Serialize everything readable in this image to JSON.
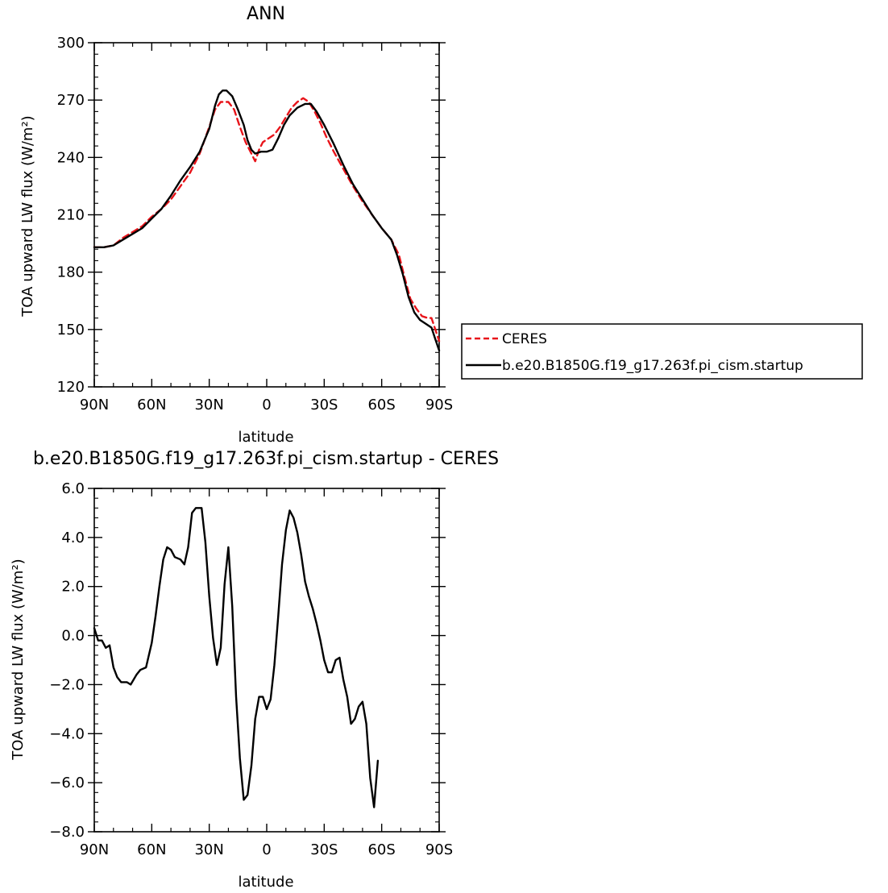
{
  "chart_data": [
    {
      "type": "line",
      "title": "ANN",
      "xlabel": "latitude",
      "ylabel": "TOA upward LW flux (W/m²)",
      "xlim": [
        90,
        -90
      ],
      "ylim": [
        120,
        300
      ],
      "x_ticks": [
        {
          "value": 90,
          "label": "90N"
        },
        {
          "value": 60,
          "label": "60N"
        },
        {
          "value": 30,
          "label": "30N"
        },
        {
          "value": 0,
          "label": "0"
        },
        {
          "value": -30,
          "label": "30S"
        },
        {
          "value": -60,
          "label": "60S"
        },
        {
          "value": -90,
          "label": "90S"
        }
      ],
      "y_ticks": [
        120,
        150,
        180,
        210,
        240,
        270,
        300
      ],
      "legend_position": "right",
      "series": [
        {
          "name": "CERES",
          "color": "#e8141a",
          "dash": true,
          "points": [
            [
              90,
              193
            ],
            [
              85,
              193
            ],
            [
              80,
              194
            ],
            [
              75,
              198
            ],
            [
              70,
              201
            ],
            [
              65,
              204
            ],
            [
              60,
              209
            ],
            [
              55,
              213
            ],
            [
              50,
              218
            ],
            [
              45,
              225
            ],
            [
              40,
              232
            ],
            [
              35,
              242
            ],
            [
              30,
              256
            ],
            [
              27,
              265
            ],
            [
              24,
              269
            ],
            [
              20,
              269
            ],
            [
              17,
              265
            ],
            [
              14,
              256
            ],
            [
              11,
              248
            ],
            [
              8,
              242
            ],
            [
              6,
              238
            ],
            [
              4,
              244
            ],
            [
              2,
              248
            ],
            [
              -1,
              250
            ],
            [
              -4,
              252
            ],
            [
              -7,
              256
            ],
            [
              -10,
              261
            ],
            [
              -13,
              266
            ],
            [
              -16,
              269
            ],
            [
              -19,
              271
            ],
            [
              -22,
              269
            ],
            [
              -25,
              264
            ],
            [
              -28,
              258
            ],
            [
              -31,
              251
            ],
            [
              -35,
              243
            ],
            [
              -40,
              234
            ],
            [
              -45,
              225
            ],
            [
              -50,
              217
            ],
            [
              -55,
              210
            ],
            [
              -60,
              203
            ],
            [
              -65,
              197
            ],
            [
              -69,
              189
            ],
            [
              -72,
              177
            ],
            [
              -75,
              166
            ],
            [
              -78,
              161
            ],
            [
              -81,
              157
            ],
            [
              -84,
              156
            ],
            [
              -86,
              156
            ],
            [
              -88,
              150
            ],
            [
              -90,
              144
            ]
          ]
        },
        {
          "name": "b.e20.B1850G.f19_g17.263f.pi_cism.startup",
          "color": "#000000",
          "dash": false,
          "points": [
            [
              90,
              193
            ],
            [
              85,
              193
            ],
            [
              80,
              194
            ],
            [
              75,
              197
            ],
            [
              70,
              200
            ],
            [
              65,
              203
            ],
            [
              60,
              208
            ],
            [
              55,
              213
            ],
            [
              50,
              220
            ],
            [
              45,
              228
            ],
            [
              40,
              235
            ],
            [
              35,
              243
            ],
            [
              30,
              255
            ],
            [
              27,
              267
            ],
            [
              25,
              273
            ],
            [
              23,
              275
            ],
            [
              21,
              275
            ],
            [
              18,
              272
            ],
            [
              15,
              265
            ],
            [
              12,
              257
            ],
            [
              10,
              249
            ],
            [
              8,
              244
            ],
            [
              6,
              242
            ],
            [
              3,
              243
            ],
            [
              0,
              243
            ],
            [
              -3,
              244
            ],
            [
              -6,
              250
            ],
            [
              -9,
              257
            ],
            [
              -12,
              262
            ],
            [
              -16,
              266
            ],
            [
              -20,
              268
            ],
            [
              -23,
              268
            ],
            [
              -26,
              264
            ],
            [
              -30,
              257
            ],
            [
              -35,
              247
            ],
            [
              -40,
              236
            ],
            [
              -45,
              226
            ],
            [
              -50,
              218
            ],
            [
              -55,
              210
            ],
            [
              -60,
              203
            ],
            [
              -65,
              197
            ],
            [
              -68,
              189
            ],
            [
              -71,
              179
            ],
            [
              -74,
              167
            ],
            [
              -77,
              159
            ],
            [
              -80,
              155
            ],
            [
              -83,
              153
            ],
            [
              -86,
              151
            ],
            [
              -88,
              145
            ],
            [
              -90,
              139
            ]
          ]
        }
      ]
    },
    {
      "type": "line",
      "title": "b.e20.B1850G.f19_g17.263f.pi_cism.startup - CERES",
      "xlabel": "latitude",
      "ylabel": "TOA upward LW flux (W/m²)",
      "xlim": [
        90,
        -90
      ],
      "ylim": [
        -8,
        6
      ],
      "x_ticks": [
        {
          "value": 90,
          "label": "90N"
        },
        {
          "value": 60,
          "label": "60N"
        },
        {
          "value": 30,
          "label": "30N"
        },
        {
          "value": 0,
          "label": "0"
        },
        {
          "value": -30,
          "label": "30S"
        },
        {
          "value": -60,
          "label": "60S"
        },
        {
          "value": -90,
          "label": "90S"
        }
      ],
      "y_ticks": [
        "-8.0",
        "-6.0",
        "-4.0",
        "-2.0",
        "0.0",
        "2.0",
        "4.0",
        "6.0"
      ],
      "series": [
        {
          "color": "#000000",
          "dash": false,
          "points": [
            [
              90,
              0.3
            ],
            [
              88,
              -0.2
            ],
            [
              86,
              -0.2
            ],
            [
              84,
              -0.5
            ],
            [
              82,
              -0.4
            ],
            [
              80,
              -1.3
            ],
            [
              78,
              -1.7
            ],
            [
              76,
              -1.9
            ],
            [
              73,
              -1.9
            ],
            [
              71,
              -2.0
            ],
            [
              68,
              -1.6
            ],
            [
              66,
              -1.4
            ],
            [
              63,
              -1.3
            ],
            [
              60,
              -0.3
            ],
            [
              58,
              0.8
            ],
            [
              56,
              2.0
            ],
            [
              54,
              3.1
            ],
            [
              52,
              3.6
            ],
            [
              50,
              3.5
            ],
            [
              48,
              3.2
            ],
            [
              45,
              3.1
            ],
            [
              43,
              2.9
            ],
            [
              41,
              3.6
            ],
            [
              39,
              5.0
            ],
            [
              37,
              5.2
            ],
            [
              34,
              5.2
            ],
            [
              32,
              3.8
            ],
            [
              30,
              1.6
            ],
            [
              28,
              -0.1
            ],
            [
              26,
              -1.2
            ],
            [
              24,
              -0.5
            ],
            [
              22,
              2.1
            ],
            [
              20,
              3.6
            ],
            [
              18,
              1.2
            ],
            [
              16,
              -2.5
            ],
            [
              14,
              -5.0
            ],
            [
              12,
              -6.7
            ],
            [
              10,
              -6.5
            ],
            [
              8,
              -5.3
            ],
            [
              6,
              -3.4
            ],
            [
              4,
              -2.5
            ],
            [
              2,
              -2.5
            ],
            [
              0,
              -3.0
            ],
            [
              -2,
              -2.6
            ],
            [
              -4,
              -1.2
            ],
            [
              -6,
              0.8
            ],
            [
              -8,
              2.9
            ],
            [
              -10,
              4.3
            ],
            [
              -12,
              5.1
            ],
            [
              -14,
              4.8
            ],
            [
              -16,
              4.2
            ],
            [
              -18,
              3.3
            ],
            [
              -20,
              2.2
            ],
            [
              -22,
              1.6
            ],
            [
              -24,
              1.1
            ],
            [
              -26,
              0.5
            ],
            [
              -28,
              -0.2
            ],
            [
              -30,
              -1.0
            ],
            [
              -32,
              -1.5
            ],
            [
              -34,
              -1.5
            ],
            [
              -36,
              -1.0
            ],
            [
              -38,
              -0.9
            ],
            [
              -40,
              -1.8
            ],
            [
              -42,
              -2.5
            ],
            [
              -44,
              -3.6
            ],
            [
              -46,
              -3.4
            ],
            [
              -48,
              -2.9
            ],
            [
              -50,
              -2.7
            ],
            [
              -52,
              -3.6
            ],
            [
              -54,
              -5.8
            ],
            [
              -56,
              -7.0
            ],
            [
              -58,
              -5.1
            ]
          ]
        }
      ]
    }
  ],
  "legend": {
    "entries": [
      "CERES",
      "b.e20.B1850G.f19_g17.263f.pi_cism.startup"
    ]
  }
}
